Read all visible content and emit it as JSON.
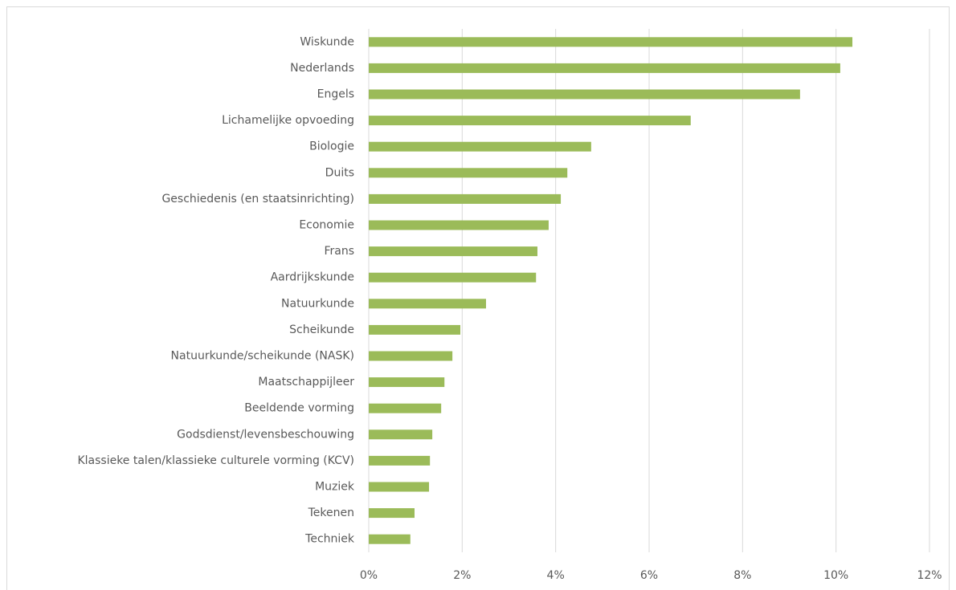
{
  "chart_data": {
    "type": "barh",
    "categories": [
      "Wiskunde",
      "Nederlands",
      "Engels",
      "Lichamelijke opvoeding",
      "Biologie",
      "Duits",
      "Geschiedenis (en staatsinrichting)",
      "Economie",
      "Frans",
      "Aardrijkskunde",
      "Natuurkunde",
      "Scheikunde",
      "Natuurkunde/scheikunde (NASK)",
      "Maatschappijleer",
      "Beeldende vorming",
      "Godsdienst/levensbeschouwing",
      "Klassieke talen/klassieke culturele vorming (KCV)",
      "Muziek",
      "Tekenen",
      "Techniek"
    ],
    "values": [
      10.35,
      10.09,
      9.23,
      6.89,
      4.76,
      4.25,
      4.11,
      3.85,
      3.61,
      3.58,
      2.51,
      1.96,
      1.79,
      1.62,
      1.55,
      1.36,
      1.31,
      1.29,
      0.98,
      0.89
    ],
    "color": "#9bbb59",
    "xlim": [
      0,
      12
    ],
    "xticks": [
      {
        "value": 0,
        "label": "0%"
      },
      {
        "value": 2,
        "label": "2%"
      },
      {
        "value": 4,
        "label": "4%"
      },
      {
        "value": 6,
        "label": "6%"
      },
      {
        "value": 8,
        "label": "8%"
      },
      {
        "value": 10,
        "label": "10%"
      },
      {
        "value": 12,
        "label": "12%"
      }
    ],
    "grid": true
  }
}
